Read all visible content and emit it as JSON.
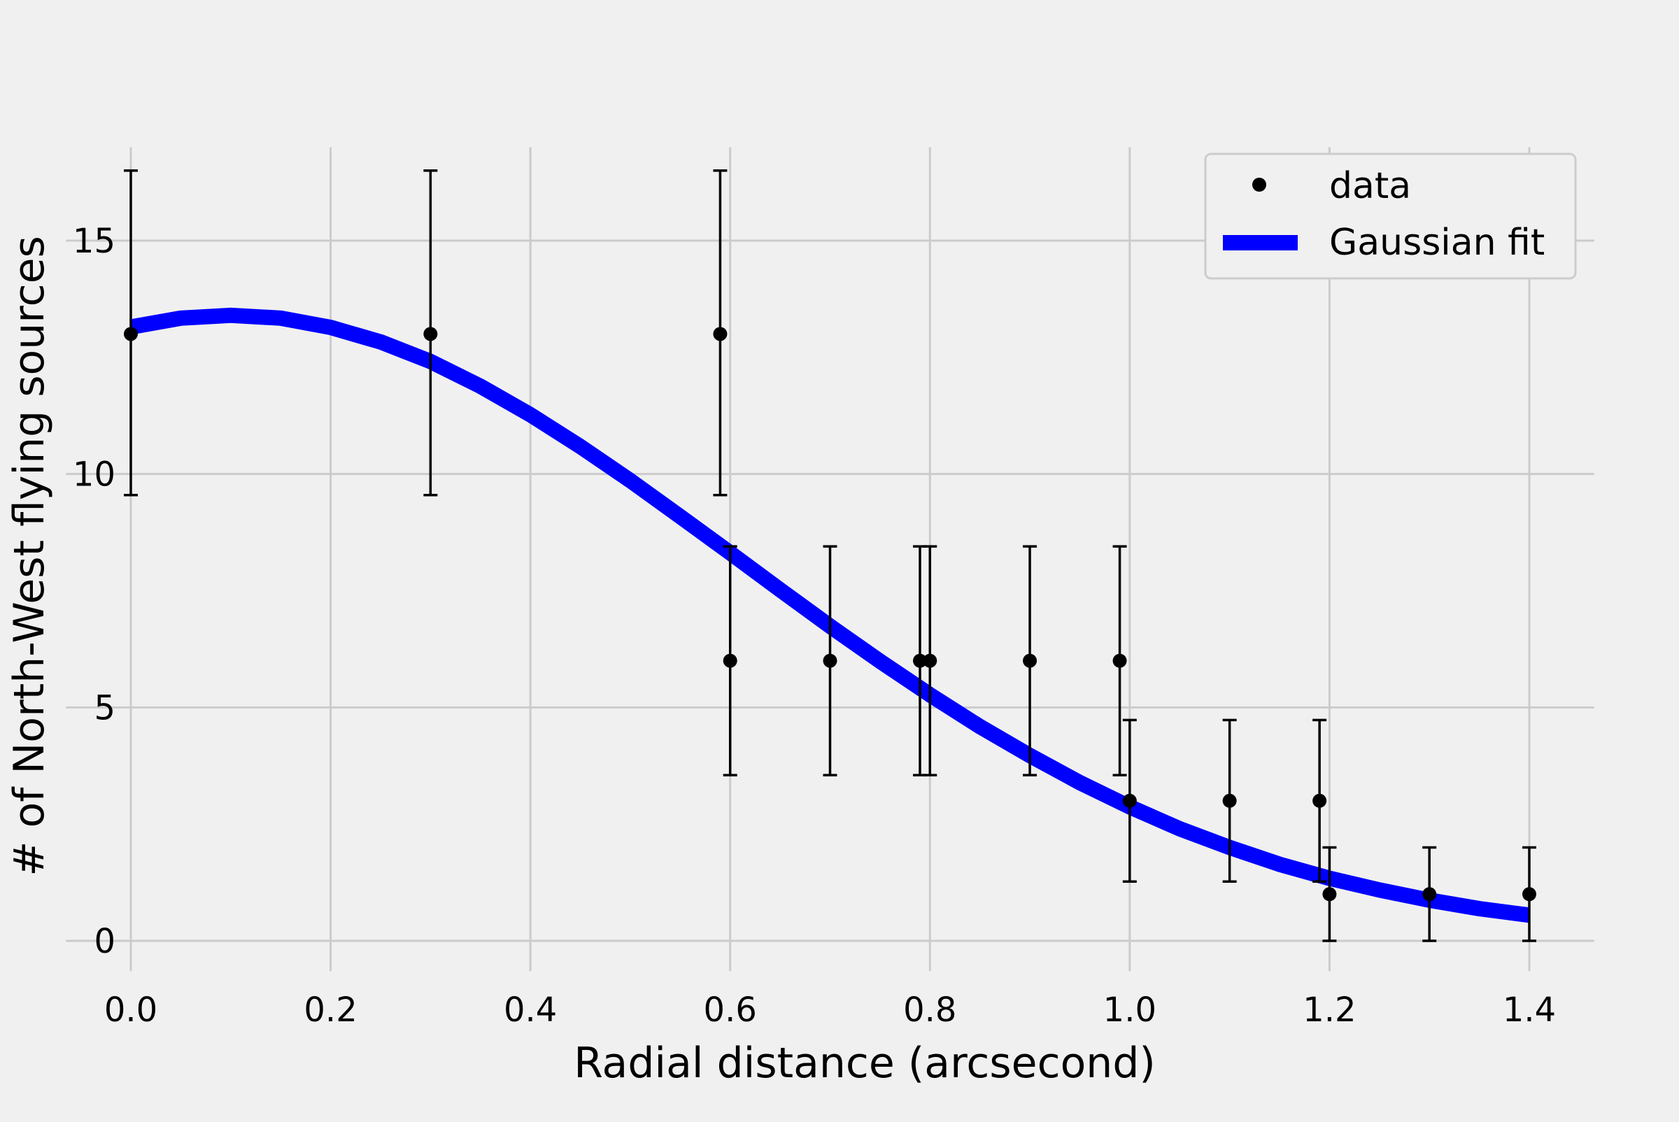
{
  "chart_data": {
    "type": "scatter",
    "title": "",
    "xlabel": "Radial distance (arcsecond)",
    "ylabel": "# of North-West flying sources",
    "xlim": [
      -0.065,
      1.465
    ],
    "ylim": [
      -0.65,
      17.0
    ],
    "xticks": [
      "0.0",
      "0.2",
      "0.4",
      "0.6",
      "0.8",
      "1.0",
      "1.2",
      "1.4"
    ],
    "yticks": [
      "0",
      "5",
      "10",
      "15"
    ],
    "grid": true,
    "legend_position": "top-right",
    "series": [
      {
        "name": "data",
        "kind": "points-with-errorbars",
        "color": "#000000",
        "points": [
          {
            "x": 0.0,
            "y": 13,
            "ylow": 9.55,
            "yhigh": 16.5
          },
          {
            "x": 0.3,
            "y": 13,
            "ylow": 9.55,
            "yhigh": 16.5
          },
          {
            "x": 0.59,
            "y": 13,
            "ylow": 9.55,
            "yhigh": 16.5
          },
          {
            "x": 0.6,
            "y": 6,
            "ylow": 3.55,
            "yhigh": 8.45
          },
          {
            "x": 0.7,
            "y": 6,
            "ylow": 3.55,
            "yhigh": 8.45
          },
          {
            "x": 0.79,
            "y": 6,
            "ylow": 3.55,
            "yhigh": 8.45
          },
          {
            "x": 0.8,
            "y": 6,
            "ylow": 3.55,
            "yhigh": 8.45
          },
          {
            "x": 0.9,
            "y": 6,
            "ylow": 3.55,
            "yhigh": 8.45
          },
          {
            "x": 0.99,
            "y": 6,
            "ylow": 3.55,
            "yhigh": 8.45
          },
          {
            "x": 1.0,
            "y": 3,
            "ylow": 1.27,
            "yhigh": 4.73
          },
          {
            "x": 1.1,
            "y": 3,
            "ylow": 1.27,
            "yhigh": 4.73
          },
          {
            "x": 1.19,
            "y": 3,
            "ylow": 1.27,
            "yhigh": 4.73
          },
          {
            "x": 1.2,
            "y": 1,
            "ylow": 0.0,
            "yhigh": 2.0
          },
          {
            "x": 1.3,
            "y": 1,
            "ylow": 0.0,
            "yhigh": 2.0
          },
          {
            "x": 1.4,
            "y": 1,
            "ylow": 0.0,
            "yhigh": 2.0
          }
        ]
      },
      {
        "name": "Gaussian fit",
        "kind": "line",
        "color": "#0000ff",
        "x": [
          0.0,
          0.05,
          0.1,
          0.15,
          0.2,
          0.25,
          0.3,
          0.35,
          0.4,
          0.45,
          0.5,
          0.55,
          0.6,
          0.65,
          0.7,
          0.75,
          0.8,
          0.85,
          0.9,
          0.95,
          1.0,
          1.05,
          1.1,
          1.15,
          1.2,
          1.25,
          1.3,
          1.35,
          1.4
        ],
        "y": [
          13.15,
          13.34,
          13.4,
          13.34,
          13.14,
          12.83,
          12.41,
          11.88,
          11.27,
          10.59,
          9.86,
          9.09,
          8.31,
          7.52,
          6.74,
          5.99,
          5.27,
          4.59,
          3.97,
          3.39,
          2.87,
          2.4,
          2.0,
          1.64,
          1.34,
          1.09,
          0.87,
          0.69,
          0.55
        ]
      }
    ]
  }
}
